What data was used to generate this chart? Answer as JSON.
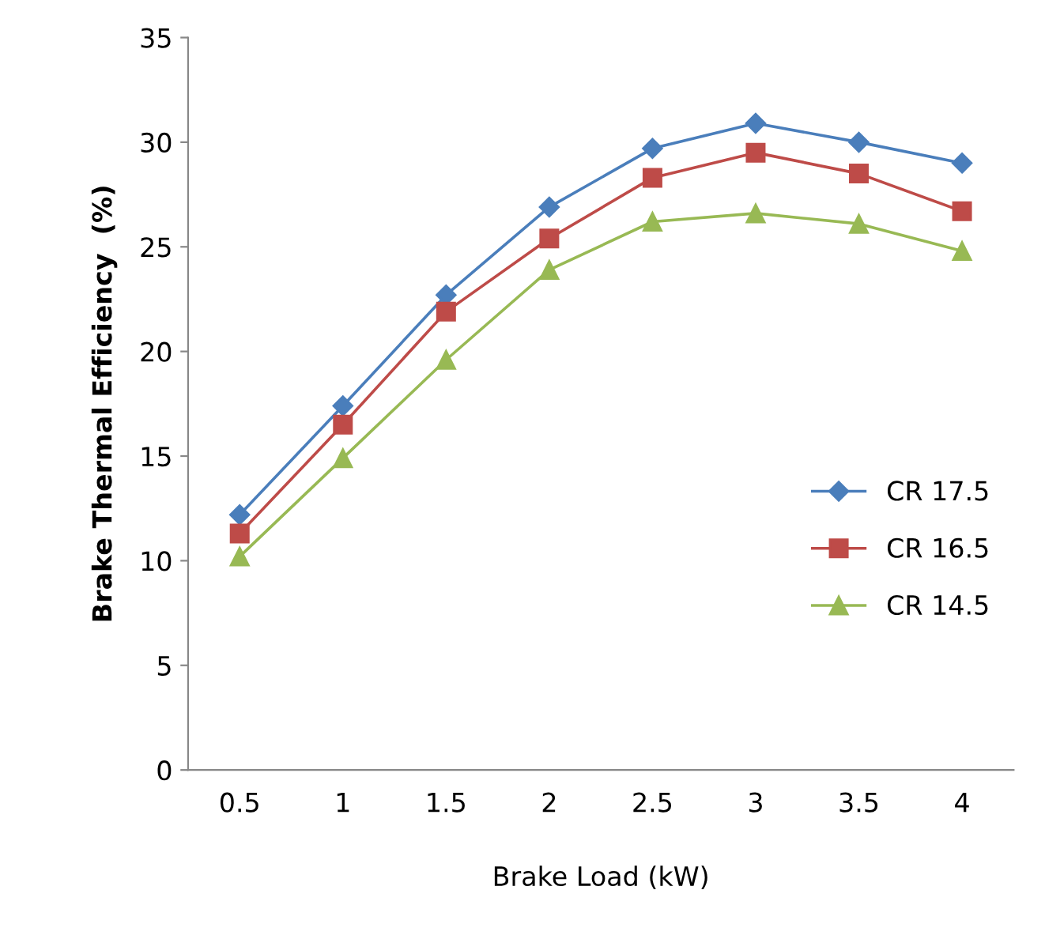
{
  "chart_data": {
    "type": "line",
    "xlabel": "Brake Load (kW)",
    "ylabel": "Brake Thermal Efficiency  (%)",
    "categories": [
      "0.5",
      "1",
      "1.5",
      "2",
      "2.5",
      "3",
      "3.5",
      "4"
    ],
    "series": [
      {
        "name": "CR 17.5",
        "color": "#4a7ebb",
        "marker": "diamond",
        "values": [
          12.2,
          17.4,
          22.7,
          26.9,
          29.7,
          30.9,
          30.0,
          29.0
        ]
      },
      {
        "name": "CR 16.5",
        "color": "#be4b48",
        "marker": "square",
        "values": [
          11.3,
          16.5,
          21.9,
          25.4,
          28.3,
          29.5,
          28.5,
          26.7
        ]
      },
      {
        "name": "CR 14.5",
        "color": "#98b954",
        "marker": "triangle",
        "values": [
          10.2,
          14.9,
          19.6,
          23.9,
          26.2,
          26.6,
          26.1,
          24.8
        ]
      }
    ],
    "ylim": [
      0,
      35
    ],
    "yticks": [
      0,
      5,
      10,
      15,
      20,
      25,
      30,
      35
    ],
    "grid": false,
    "legend": "right",
    "line_style": "solid"
  }
}
